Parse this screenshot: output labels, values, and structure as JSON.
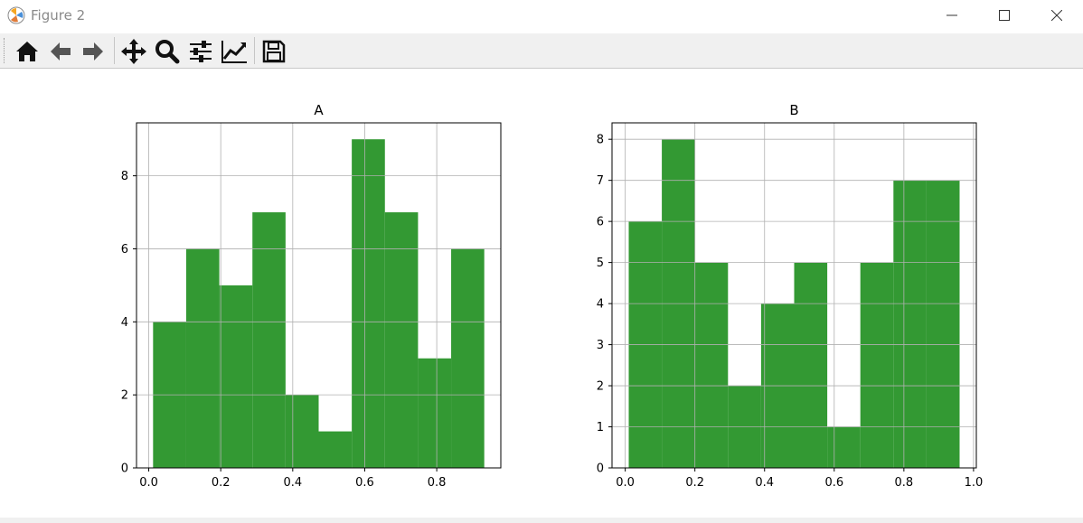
{
  "window": {
    "title": "Figure 2"
  },
  "toolbar": {
    "buttons": [
      {
        "icon": "home-icon"
      },
      {
        "icon": "back-arrow-icon"
      },
      {
        "icon": "forward-arrow-icon"
      },
      {
        "icon": "pan-move-icon"
      },
      {
        "icon": "zoom-magnifier-icon"
      },
      {
        "icon": "configure-subplots-icon"
      },
      {
        "icon": "edit-axis-icon"
      },
      {
        "icon": "save-floppy-icon"
      }
    ]
  },
  "colors": {
    "bar": "#339933",
    "grid": "#b0b0b0",
    "axis": "#000000"
  },
  "chart_data": [
    {
      "type": "bar",
      "title": "A",
      "xlabel": "",
      "ylabel": "",
      "bin_edges": [
        0.012,
        0.104,
        0.196,
        0.288,
        0.38,
        0.472,
        0.564,
        0.656,
        0.748,
        0.84,
        0.932
      ],
      "values": [
        4,
        6,
        5,
        7,
        2,
        1,
        9,
        7,
        3,
        6
      ],
      "xlim": [
        -0.034,
        0.978
      ],
      "ylim": [
        0,
        9.45
      ],
      "xticks": [
        0.0,
        0.2,
        0.4,
        0.6,
        0.8
      ],
      "xtick_labels": [
        "0.0",
        "0.2",
        "0.4",
        "0.6",
        "0.8"
      ],
      "yticks": [
        0,
        2,
        4,
        6,
        8
      ],
      "ytick_labels": [
        "0",
        "2",
        "4",
        "6",
        "8"
      ],
      "grid": true
    },
    {
      "type": "bar",
      "title": "B",
      "xlabel": "",
      "ylabel": "",
      "bin_edges": [
        0.01,
        0.105,
        0.2,
        0.295,
        0.39,
        0.485,
        0.58,
        0.675,
        0.77,
        0.865,
        0.96
      ],
      "values": [
        6,
        8,
        5,
        2,
        4,
        5,
        1,
        5,
        7,
        7
      ],
      "xlim": [
        -0.038,
        1.008
      ],
      "ylim": [
        0,
        8.4
      ],
      "xticks": [
        0.0,
        0.2,
        0.4,
        0.6,
        0.8,
        1.0
      ],
      "xtick_labels": [
        "0.0",
        "0.2",
        "0.4",
        "0.6",
        "0.8",
        "1.0"
      ],
      "yticks": [
        0,
        1,
        2,
        3,
        4,
        5,
        6,
        7,
        8
      ],
      "ytick_labels": [
        "0",
        "1",
        "2",
        "3",
        "4",
        "5",
        "6",
        "7",
        "8"
      ],
      "grid": true
    }
  ]
}
